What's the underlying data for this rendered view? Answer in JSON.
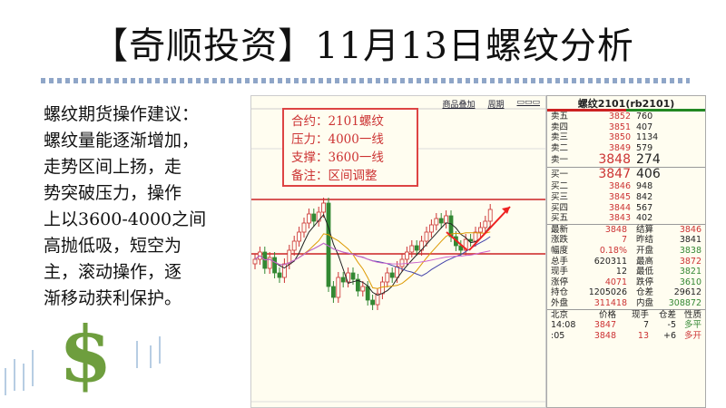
{
  "title": "【奇顺投资】11月13日螺纹分析",
  "advice": [
    "螺纹期货操作建议：",
    "螺纹量能逐渐增加，",
    "走势区间上扬，走",
    "势突破压力，操作",
    "上以3600-4000之间",
    "高抛低吸，短空为",
    "主，滚动操作，逐",
    "渐移动获利保护。"
  ],
  "chart": {
    "toolbar": [
      "商品叠加",
      "周期"
    ],
    "notes": [
      "合约：2101螺纹",
      "压力：4000一线",
      "支撑：3600一线",
      "备注：区间调整"
    ]
  },
  "quote": {
    "title": "螺纹2101(rb2101)",
    "asks": [
      {
        "l": "卖五",
        "p": "3852",
        "v": "760"
      },
      {
        "l": "卖四",
        "p": "3851",
        "v": "407"
      },
      {
        "l": "卖三",
        "p": "3850",
        "v": "1134"
      },
      {
        "l": "卖二",
        "p": "3849",
        "v": "579"
      },
      {
        "l": "卖一",
        "p": "3848",
        "v": "274"
      }
    ],
    "bids": [
      {
        "l": "买一",
        "p": "3847",
        "v": "406"
      },
      {
        "l": "买二",
        "p": "3846",
        "v": "948"
      },
      {
        "l": "买三",
        "p": "3845",
        "v": "842"
      },
      {
        "l": "买四",
        "p": "3844",
        "v": "567"
      },
      {
        "l": "买五",
        "p": "3843",
        "v": "402"
      }
    ],
    "stats": [
      [
        "最新",
        "3848",
        "结算",
        "3846"
      ],
      [
        "涨跌",
        "7",
        "昨结",
        "3841"
      ],
      [
        "幅度",
        "0.18%",
        "开盘",
        "3838"
      ],
      [
        "总手",
        "620311",
        "最高",
        "3872"
      ],
      [
        "现手",
        "12",
        "最低",
        "3821"
      ],
      [
        "涨停",
        "4071",
        "跌停",
        "3610"
      ],
      [
        "持仓",
        "1205026",
        "仓差",
        "29612"
      ],
      [
        "外盘",
        "311418",
        "内盘",
        "308872"
      ]
    ],
    "tick_header": [
      "北京",
      "价格",
      "现手",
      "仓差",
      "性质"
    ],
    "ticks": [
      [
        "14:08",
        "3847",
        "7",
        "-5",
        "多平"
      ],
      [
        ":05",
        "3848",
        "13",
        "+6",
        "多开"
      ]
    ]
  },
  "colors": {
    "up": "#cc3333",
    "down": "#338833",
    "line": "#c22"
  }
}
